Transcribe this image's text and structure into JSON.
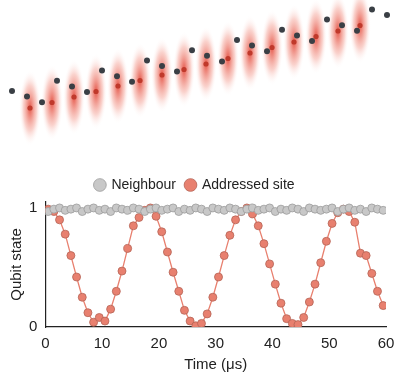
{
  "chart_data": {
    "type": "scatter",
    "x_label": "Time (μs)",
    "y_label": "Qubit state",
    "x": [
      0.5,
      1.5,
      2.5,
      3.5,
      4.5,
      5.5,
      6.5,
      7.5,
      8.5,
      9.5,
      10.5,
      11.5,
      12.5,
      13.5,
      14.5,
      15.5,
      16.5,
      17.5,
      18.5,
      19.5,
      20.5,
      21.5,
      22.5,
      23.5,
      24.5,
      25.5,
      26.5,
      27.5,
      28.5,
      29.5,
      30.5,
      31.5,
      32.5,
      33.5,
      34.5,
      35.5,
      36.5,
      37.5,
      38.5,
      39.5,
      40.5,
      41.5,
      42.5,
      43.5,
      44.5,
      45.5,
      46.5,
      47.5,
      48.5,
      49.5,
      50.5,
      51.5,
      52.5,
      53.5,
      54.5,
      55.5,
      56.5,
      57.5,
      58.5,
      59.5
    ],
    "series": [
      {
        "name": "Addressed site",
        "color": "#e8806f",
        "marker": "circle",
        "line_style": "solid",
        "values": [
          0.99,
          0.97,
          0.9,
          0.78,
          0.6,
          0.42,
          0.25,
          0.12,
          0.04,
          0.08,
          0.05,
          0.15,
          0.3,
          0.47,
          0.66,
          0.85,
          0.92,
          0.98,
          1.0,
          0.93,
          0.8,
          0.63,
          0.46,
          0.3,
          0.14,
          0.05,
          0.01,
          0.03,
          0.11,
          0.25,
          0.42,
          0.6,
          0.77,
          0.9,
          0.97,
          1.0,
          0.95,
          0.85,
          0.7,
          0.53,
          0.36,
          0.2,
          0.07,
          0.03,
          0.02,
          0.08,
          0.21,
          0.36,
          0.54,
          0.72,
          0.87,
          0.96,
          0.99,
          0.97,
          0.88,
          0.62,
          0.6,
          0.45,
          0.3,
          0.18
        ]
      },
      {
        "name": "Neighbour",
        "color": "#c8c8c8",
        "marker": "circle",
        "line_style": "none",
        "values": [
          0.97,
          0.99,
          1.0,
          0.98,
          0.99,
          1.0,
          0.97,
          0.99,
          1.0,
          0.98,
          0.99,
          0.97,
          1.0,
          0.99,
          0.98,
          1.0,
          0.99,
          0.97,
          0.99,
          1.0,
          0.98,
          0.99,
          1.0,
          0.97,
          0.99,
          0.98,
          1.0,
          0.99,
          0.97,
          1.0,
          0.99,
          0.98,
          1.0,
          0.99,
          0.97,
          0.99,
          1.0,
          0.98,
          0.99,
          1.0,
          0.97,
          0.99,
          0.98,
          1.0,
          0.99,
          0.97,
          1.0,
          0.99,
          0.98,
          0.99,
          1.0,
          0.97,
          0.99,
          1.0,
          0.98,
          0.99,
          0.97,
          1.0,
          0.99,
          0.98
        ]
      }
    ],
    "xlim": [
      0,
      60
    ],
    "xticks": [
      0,
      10,
      20,
      30,
      40,
      50,
      60
    ],
    "ylim": [
      0,
      1.05
    ],
    "yticks": [
      0,
      1
    ],
    "grid": false,
    "legend": "top"
  }
}
